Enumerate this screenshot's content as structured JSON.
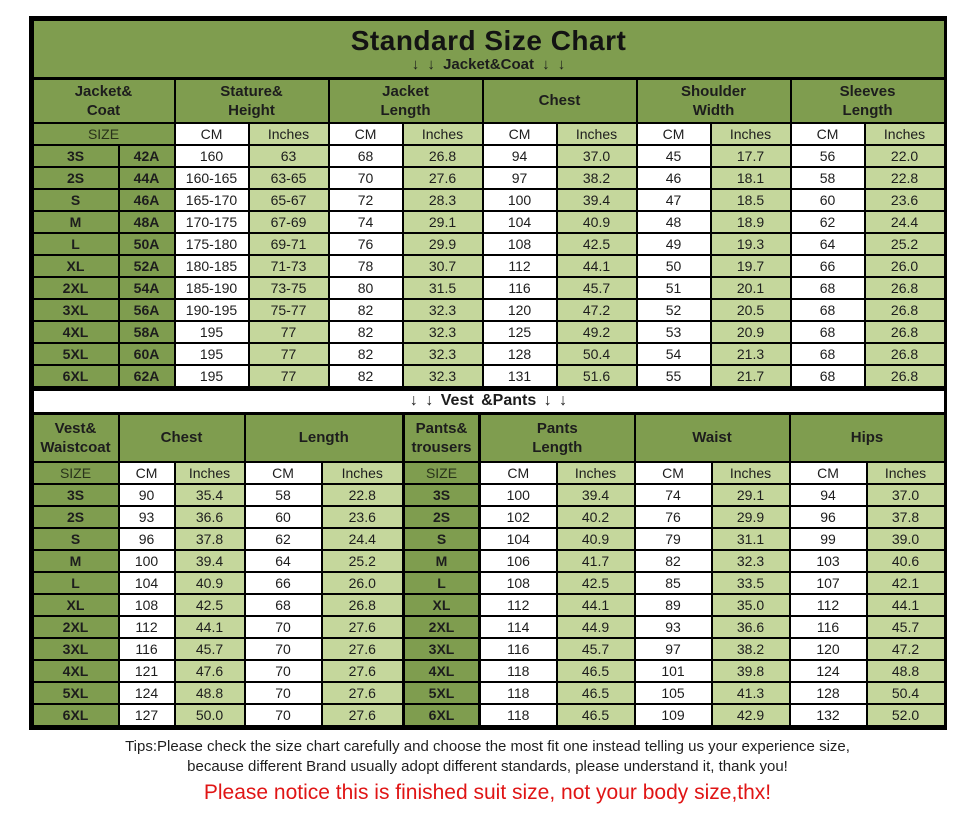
{
  "title": "Standard Size Chart",
  "bands": {
    "jacket": "↓ ↓  Jacket&Coat ↓ ↓",
    "vest": "↓ ↓  Vest &Pants ↓ ↓"
  },
  "colors": {
    "olive": "#7f9d4f",
    "light": "#c5d79c",
    "ink": "#1d1d1d",
    "red": "#e01515",
    "tips": "#1f1f1f"
  },
  "tips": {
    "line1": "Tips:Please check the size chart carefully and choose the most fit one instead telling us your experience size,",
    "line2": "because different Brand usually adopt different standards, please understand it, thank you!",
    "notice": "Please notice this is finished suit size, not your body size,thx!"
  },
  "chart_data": [
    {
      "type": "table",
      "name": "Jacket & Coat sizes",
      "group_headers": [
        {
          "label": "Jacket&\nCoat",
          "span": 2,
          "kind": "plain"
        },
        {
          "label": "Stature&\nHeight",
          "span": 2,
          "kind": "plain"
        },
        {
          "label": "Jacket\nLength",
          "span": 2,
          "kind": "plain"
        },
        {
          "label": "Chest",
          "span": 2,
          "kind": "plain"
        },
        {
          "label": "Shoulder\nWidth",
          "span": 2,
          "kind": "plain"
        },
        {
          "label": "Sleeves\nLength",
          "span": 2,
          "kind": "plain"
        }
      ],
      "unit_row": [
        {
          "label": "SIZE",
          "span": 2,
          "kind": "size"
        },
        {
          "label": "CM",
          "span": 1,
          "kind": "cm"
        },
        {
          "label": "Inches",
          "span": 1,
          "kind": "in"
        },
        {
          "label": "CM",
          "span": 1,
          "kind": "cm"
        },
        {
          "label": "Inches",
          "span": 1,
          "kind": "in"
        },
        {
          "label": "CM",
          "span": 1,
          "kind": "cm"
        },
        {
          "label": "Inches",
          "span": 1,
          "kind": "in"
        },
        {
          "label": "CM",
          "span": 1,
          "kind": "cm"
        },
        {
          "label": "Inches",
          "span": 1,
          "kind": "in"
        },
        {
          "label": "CM",
          "span": 1,
          "kind": "cm"
        },
        {
          "label": "Inches",
          "span": 1,
          "kind": "in"
        }
      ],
      "col_kinds": [
        "size",
        "size",
        "cm",
        "in",
        "cm",
        "in",
        "cm",
        "in",
        "cm",
        "in",
        "cm",
        "in"
      ],
      "rows": [
        [
          "3S",
          "42A",
          "160",
          "63",
          "68",
          "26.8",
          "94",
          "37.0",
          "45",
          "17.7",
          "56",
          "22.0"
        ],
        [
          "2S",
          "44A",
          "160-165",
          "63-65",
          "70",
          "27.6",
          "97",
          "38.2",
          "46",
          "18.1",
          "58",
          "22.8"
        ],
        [
          "S",
          "46A",
          "165-170",
          "65-67",
          "72",
          "28.3",
          "100",
          "39.4",
          "47",
          "18.5",
          "60",
          "23.6"
        ],
        [
          "M",
          "48A",
          "170-175",
          "67-69",
          "74",
          "29.1",
          "104",
          "40.9",
          "48",
          "18.9",
          "62",
          "24.4"
        ],
        [
          "L",
          "50A",
          "175-180",
          "69-71",
          "76",
          "29.9",
          "108",
          "42.5",
          "49",
          "19.3",
          "64",
          "25.2"
        ],
        [
          "XL",
          "52A",
          "180-185",
          "71-73",
          "78",
          "30.7",
          "112",
          "44.1",
          "50",
          "19.7",
          "66",
          "26.0"
        ],
        [
          "2XL",
          "54A",
          "185-190",
          "73-75",
          "80",
          "31.5",
          "116",
          "45.7",
          "51",
          "20.1",
          "68",
          "26.8"
        ],
        [
          "3XL",
          "56A",
          "190-195",
          "75-77",
          "82",
          "32.3",
          "120",
          "47.2",
          "52",
          "20.5",
          "68",
          "26.8"
        ],
        [
          "4XL",
          "58A",
          "195",
          "77",
          "82",
          "32.3",
          "125",
          "49.2",
          "53",
          "20.9",
          "68",
          "26.8"
        ],
        [
          "5XL",
          "60A",
          "195",
          "77",
          "82",
          "32.3",
          "128",
          "50.4",
          "54",
          "21.3",
          "68",
          "26.8"
        ],
        [
          "6XL",
          "62A",
          "195",
          "77",
          "82",
          "32.3",
          "131",
          "51.6",
          "55",
          "21.7",
          "68",
          "26.8"
        ]
      ]
    },
    {
      "type": "table",
      "name": "Vest & Pants sizes",
      "group_headers": [
        {
          "label": "Vest&\nWaistcoat",
          "span": 1,
          "kind": "plain"
        },
        {
          "label": "Chest",
          "span": 2,
          "kind": "plain"
        },
        {
          "label": "Length",
          "span": 2,
          "kind": "plain"
        },
        {
          "label": "Pants&\ntrousers",
          "span": 1,
          "kind": "size2"
        },
        {
          "label": "Pants\nLength",
          "span": 2,
          "kind": "plain"
        },
        {
          "label": "Waist",
          "span": 2,
          "kind": "plain"
        },
        {
          "label": "Hips",
          "span": 2,
          "kind": "plain"
        }
      ],
      "unit_row": [
        {
          "label": "SIZE",
          "span": 1,
          "kind": "size"
        },
        {
          "label": "CM",
          "span": 1,
          "kind": "cm"
        },
        {
          "label": "Inches",
          "span": 1,
          "kind": "in"
        },
        {
          "label": "CM",
          "span": 1,
          "kind": "cm"
        },
        {
          "label": "Inches",
          "span": 1,
          "kind": "in"
        },
        {
          "label": "SIZE",
          "span": 1,
          "kind": "size2"
        },
        {
          "label": "CM",
          "span": 1,
          "kind": "cm"
        },
        {
          "label": "Inches",
          "span": 1,
          "kind": "in"
        },
        {
          "label": "CM",
          "span": 1,
          "kind": "cm"
        },
        {
          "label": "Inches",
          "span": 1,
          "kind": "in"
        },
        {
          "label": "CM",
          "span": 1,
          "kind": "cm"
        },
        {
          "label": "Inches",
          "span": 1,
          "kind": "in"
        }
      ],
      "col_kinds": [
        "size",
        "cm",
        "in",
        "cm",
        "in",
        "size2",
        "cm",
        "in",
        "cm",
        "in",
        "cm",
        "in"
      ],
      "rows": [
        [
          "3S",
          "90",
          "35.4",
          "58",
          "22.8",
          "3S",
          "100",
          "39.4",
          "74",
          "29.1",
          "94",
          "37.0"
        ],
        [
          "2S",
          "93",
          "36.6",
          "60",
          "23.6",
          "2S",
          "102",
          "40.2",
          "76",
          "29.9",
          "96",
          "37.8"
        ],
        [
          "S",
          "96",
          "37.8",
          "62",
          "24.4",
          "S",
          "104",
          "40.9",
          "79",
          "31.1",
          "99",
          "39.0"
        ],
        [
          "M",
          "100",
          "39.4",
          "64",
          "25.2",
          "M",
          "106",
          "41.7",
          "82",
          "32.3",
          "103",
          "40.6"
        ],
        [
          "L",
          "104",
          "40.9",
          "66",
          "26.0",
          "L",
          "108",
          "42.5",
          "85",
          "33.5",
          "107",
          "42.1"
        ],
        [
          "XL",
          "108",
          "42.5",
          "68",
          "26.8",
          "XL",
          "112",
          "44.1",
          "89",
          "35.0",
          "112",
          "44.1"
        ],
        [
          "2XL",
          "112",
          "44.1",
          "70",
          "27.6",
          "2XL",
          "114",
          "44.9",
          "93",
          "36.6",
          "116",
          "45.7"
        ],
        [
          "3XL",
          "116",
          "45.7",
          "70",
          "27.6",
          "3XL",
          "116",
          "45.7",
          "97",
          "38.2",
          "120",
          "47.2"
        ],
        [
          "4XL",
          "121",
          "47.6",
          "70",
          "27.6",
          "4XL",
          "118",
          "46.5",
          "101",
          "39.8",
          "124",
          "48.8"
        ],
        [
          "5XL",
          "124",
          "48.8",
          "70",
          "27.6",
          "5XL",
          "118",
          "46.5",
          "105",
          "41.3",
          "128",
          "50.4"
        ],
        [
          "6XL",
          "127",
          "50.0",
          "70",
          "27.6",
          "6XL",
          "118",
          "46.5",
          "109",
          "42.9",
          "132",
          "52.0"
        ]
      ]
    }
  ]
}
